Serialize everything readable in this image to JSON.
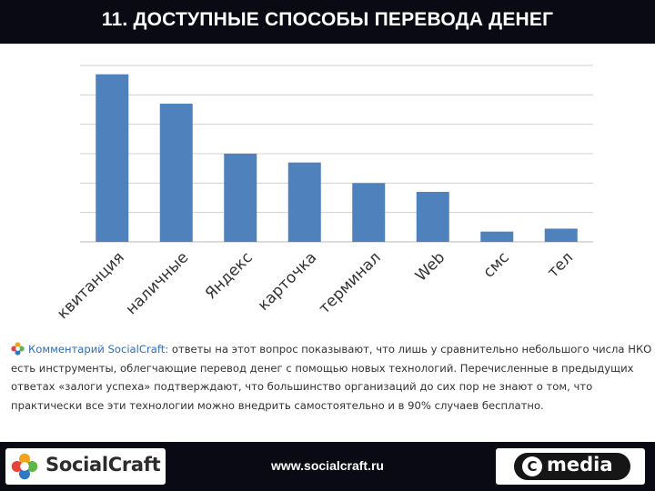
{
  "header": {
    "title": "11. ДОСТУПНЫЕ СПОСОБЫ ПЕРЕВОДА ДЕНЕГ"
  },
  "chart_data": {
    "type": "bar",
    "title": "11. ДОСТУПНЫЕ СПОСОБЫ ПЕРЕВОДА ДЕНЕГ",
    "categories": [
      "квитанция",
      "наличные",
      "Яндекс",
      "карточка",
      "терминал",
      "Web",
      "смс",
      "тел"
    ],
    "values": [
      5.7,
      4.7,
      3.0,
      2.7,
      2.0,
      1.7,
      0.35,
      0.45
    ],
    "ylim": [
      0,
      6
    ],
    "grid": true,
    "yticks_labeled": false,
    "xtick_rotation": -45,
    "legend": "none",
    "bar_color": "#4f81bd"
  },
  "comment": {
    "prefix": "Комментарий SocialCraft:",
    "text": "ответы на этот вопрос показывают, что лишь у сравнительно небольшого числа НКО есть инструменты, облегчающие перевод денег с помощью новых технологий. Перечисленные в предыдущих ответах «залоги успеха» подтверждают, что большинство организаций до сих пор не знают о том, что практически все эти технологии можно внедрить самостоятельно и в 90% случаев бесплатно."
  },
  "footer": {
    "left_logo": "SocialCraft",
    "url": "www.socialcraft.ru",
    "right_logo_letter": "C",
    "right_logo": "media"
  },
  "colors": {
    "bar": "#4f81bd",
    "header_bg": "#0a0a14",
    "link_blue": "#2f6db8"
  }
}
